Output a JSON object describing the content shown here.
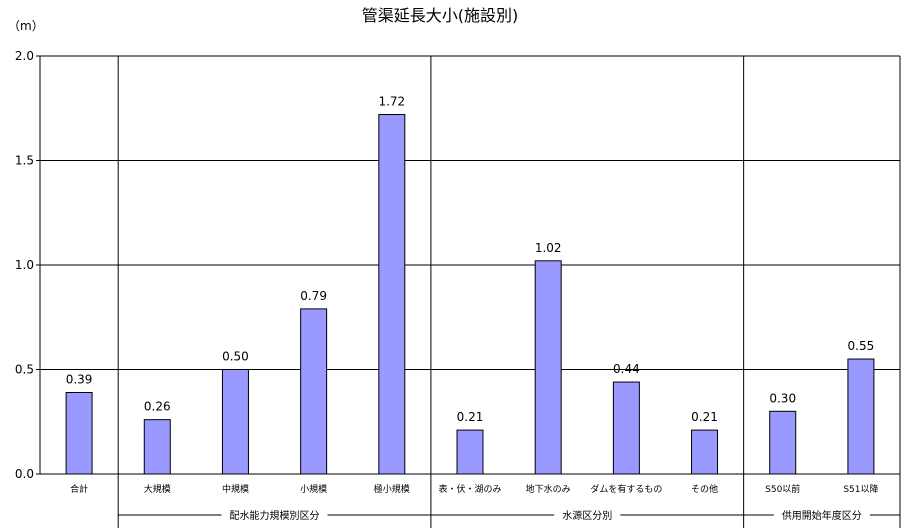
{
  "chart_data": {
    "type": "bar",
    "title": "管渠延長大小(施設別)",
    "ylabel": "（m）",
    "ylim": [
      0,
      2.0
    ],
    "yticks": [
      "0.0",
      "0.5",
      "1.0",
      "1.5",
      "2.0"
    ],
    "grid": true,
    "bar_color": "#9999ff",
    "categories": [
      "合計",
      "大規模",
      "中規模",
      "小規模",
      "極小規模",
      "表・伏・湖のみ",
      "地下水のみ",
      "ダムを有するもの",
      "その他",
      "S50以前",
      "S51以降"
    ],
    "values": [
      0.39,
      0.26,
      0.5,
      0.79,
      1.72,
      0.21,
      1.02,
      0.44,
      0.21,
      0.3,
      0.55
    ],
    "value_labels": [
      "0.39",
      "0.26",
      "0.50",
      "0.79",
      "1.72",
      "0.21",
      "1.02",
      "0.44",
      "0.21",
      "0.30",
      "0.55"
    ],
    "groups": [
      {
        "label": "配水能力規模別区分",
        "from": 1,
        "to": 4
      },
      {
        "label": "水源区分別",
        "from": 5,
        "to": 8
      },
      {
        "label": "供用開始年度区分",
        "from": 9,
        "to": 10
      }
    ]
  }
}
